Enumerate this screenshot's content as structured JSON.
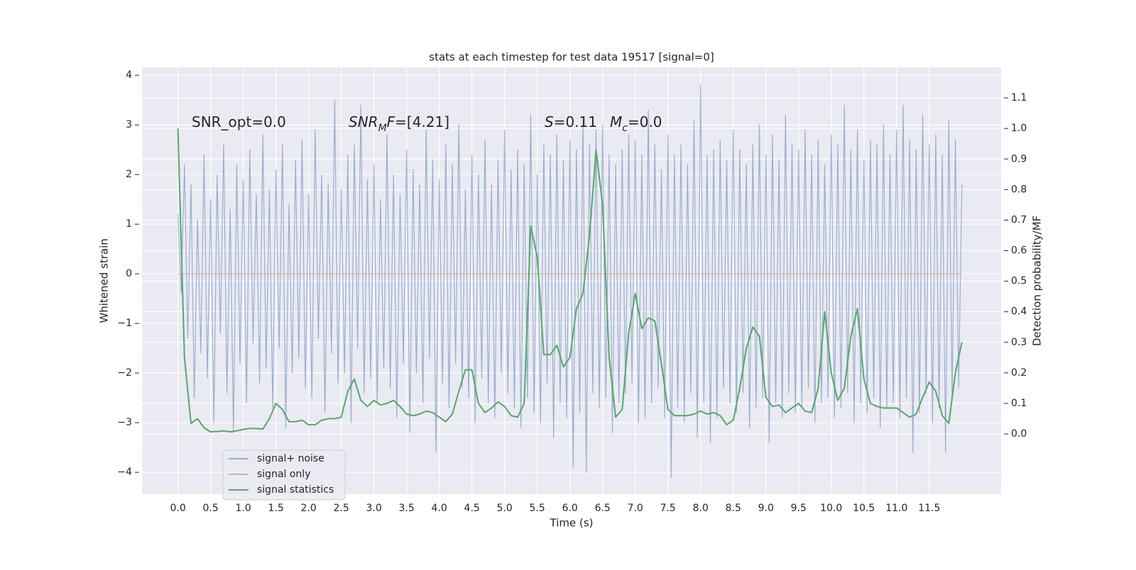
{
  "chart_data": {
    "type": "line",
    "title": "stats at each timestep for test data 19517 [signal=0]",
    "xlabel": "Time (s)",
    "ylabel": "Whitened strain",
    "y2label": "Detection probability/MF",
    "grid": true,
    "legend": "lower left",
    "background": "#eaeaf2",
    "xlim": [
      -0.55,
      12.6
    ],
    "ylim": [
      -4.44,
      4.16
    ],
    "y2lim": [
      -0.197,
      1.2
    ],
    "xticks": [
      {
        "value": 0,
        "label": "0.0"
      },
      0.5,
      {
        "value": 1,
        "label": "1.0"
      },
      1.5,
      {
        "value": 2,
        "label": "2.0"
      },
      2.5,
      {
        "value": 3,
        "label": "3.0"
      },
      3.5,
      {
        "value": 4,
        "label": "4.0"
      },
      4.5,
      {
        "value": 5,
        "label": "5.0"
      },
      5.5,
      {
        "value": 6,
        "label": "6.0"
      },
      6.5,
      {
        "value": 7,
        "label": "7.0"
      },
      7.5,
      {
        "value": 8,
        "label": "8.0"
      },
      8.5,
      {
        "value": 9,
        "label": "9.0"
      },
      9.5,
      {
        "value": 10,
        "label": "10.0"
      },
      10.5,
      {
        "value": 11,
        "label": "11.0"
      },
      11.5
    ],
    "yticks": [
      {
        "value": -4,
        "label": "−4"
      },
      {
        "value": -3,
        "label": "−3"
      },
      {
        "value": -2,
        "label": "−2"
      },
      {
        "value": -1,
        "label": "−1"
      },
      0,
      1,
      2,
      3,
      4
    ],
    "y2ticks": [
      {
        "value": 0,
        "label": "0.0"
      },
      0.1,
      0.2,
      0.3,
      0.4,
      0.5,
      0.6,
      0.7,
      0.8,
      0.9,
      {
        "value": 1,
        "label": "1.0"
      },
      1.1
    ],
    "annotations": [
      [
        {
          "text": "SNR_opt=0.0",
          "style": "normal"
        }
      ],
      [
        {
          "text": "SNR",
          "style": "italic"
        },
        {
          "text": "M",
          "style": "sub"
        },
        {
          "text": "F",
          "style": "italic"
        },
        {
          "text": "=[4.21]",
          "style": "normal"
        }
      ],
      [
        {
          "text": "S",
          "style": "italic"
        },
        {
          "text": "=0.11",
          "style": "normal"
        }
      ],
      [
        {
          "text": "M",
          "style": "italic"
        },
        {
          "text": "c",
          "style": "sub"
        },
        {
          "text": "=0.0",
          "style": "normal"
        }
      ]
    ],
    "series": [
      {
        "name": "signal+ noise",
        "color": "#4c72b0",
        "alpha": 0.5,
        "axis": "y",
        "x": [
          0,
          0.05,
          0.1,
          0.15,
          0.2,
          0.25,
          0.3,
          0.35,
          0.4,
          0.45,
          0.5,
          0.55,
          0.6,
          0.65,
          0.7,
          0.75,
          0.8,
          0.85,
          0.9,
          0.95,
          1,
          1.05,
          1.1,
          1.15,
          1.2,
          1.25,
          1.3,
          1.35,
          1.4,
          1.45,
          1.5,
          1.55,
          1.6,
          1.65,
          1.7,
          1.75,
          1.8,
          1.85,
          1.9,
          1.95,
          2,
          2.05,
          2.1,
          2.15,
          2.2,
          2.25,
          2.3,
          2.35,
          2.4,
          2.45,
          2.5,
          2.55,
          2.6,
          2.65,
          2.7,
          2.75,
          2.8,
          2.85,
          2.9,
          2.95,
          3,
          3.05,
          3.1,
          3.15,
          3.2,
          3.25,
          3.3,
          3.35,
          3.4,
          3.45,
          3.5,
          3.55,
          3.6,
          3.65,
          3.7,
          3.75,
          3.8,
          3.85,
          3.9,
          3.95,
          4,
          4.05,
          4.1,
          4.15,
          4.2,
          4.25,
          4.3,
          4.35,
          4.4,
          4.45,
          4.5,
          4.55,
          4.6,
          4.65,
          4.7,
          4.75,
          4.8,
          4.85,
          4.9,
          4.95,
          5,
          5.05,
          5.1,
          5.15,
          5.2,
          5.25,
          5.3,
          5.35,
          5.4,
          5.45,
          5.5,
          5.55,
          5.6,
          5.65,
          5.7,
          5.75,
          5.8,
          5.85,
          5.9,
          5.95,
          6,
          6.05,
          6.1,
          6.15,
          6.2,
          6.25,
          6.3,
          6.35,
          6.4,
          6.45,
          6.5,
          6.55,
          6.6,
          6.65,
          6.7,
          6.75,
          6.8,
          6.85,
          6.9,
          6.95,
          7,
          7.05,
          7.1,
          7.15,
          7.2,
          7.25,
          7.3,
          7.35,
          7.4,
          7.45,
          7.5,
          7.55,
          7.6,
          7.65,
          7.7,
          7.75,
          7.8,
          7.85,
          7.9,
          7.95,
          8,
          8.05,
          8.1,
          8.15,
          8.2,
          8.25,
          8.3,
          8.35,
          8.4,
          8.45,
          8.5,
          8.55,
          8.6,
          8.65,
          8.7,
          8.75,
          8.8,
          8.85,
          8.9,
          8.95,
          9,
          9.05,
          9.1,
          9.15,
          9.2,
          9.25,
          9.3,
          9.35,
          9.4,
          9.45,
          9.5,
          9.55,
          9.6,
          9.65,
          9.7,
          9.75,
          9.8,
          9.85,
          9.9,
          9.95,
          10,
          10.05,
          10.1,
          10.15,
          10.2,
          10.25,
          10.3,
          10.35,
          10.4,
          10.45,
          10.5,
          10.55,
          10.6,
          10.65,
          10.7,
          10.75,
          10.8,
          10.85,
          10.9,
          10.95,
          11,
          11.05,
          11.1,
          11.15,
          11.2,
          11.25,
          11.3,
          11.35,
          11.4,
          11.45,
          11.5,
          11.55,
          11.6,
          11.65,
          11.7,
          11.75,
          11.8,
          11.85,
          11.9,
          11.95,
          12
        ],
        "values": [
          1.2,
          -0.4,
          2.2,
          -1.3,
          1.8,
          -2.5,
          1.1,
          -1.6,
          2.4,
          -2.1,
          1.5,
          -3.0,
          2.0,
          -1.2,
          2.6,
          -2.4,
          1.3,
          -3.2,
          2.2,
          -1.8,
          1.9,
          -2.6,
          2.5,
          -1.4,
          1.6,
          -2.2,
          2.8,
          -1.9,
          1.7,
          -2.7,
          2.1,
          -1.5,
          2.6,
          -3.1,
          1.4,
          -2.0,
          2.3,
          -1.7,
          2.7,
          -2.3,
          1.6,
          -2.5,
          2.9,
          -1.3,
          2.0,
          -2.8,
          1.8,
          -1.6,
          3.5,
          -2.2,
          1.7,
          -2.0,
          2.4,
          -3.0,
          2.6,
          -1.5,
          3.4,
          -2.4,
          1.9,
          -2.1,
          2.2,
          -2.6,
          1.5,
          -1.9,
          2.8,
          -2.3,
          2.0,
          -2.9,
          1.6,
          -1.8,
          2.5,
          -3.2,
          2.1,
          -2.0,
          1.8,
          -2.6,
          2.9,
          -1.7,
          2.3,
          -3.6,
          1.9,
          -2.2,
          2.6,
          -2.7,
          2.2,
          -1.8,
          3.0,
          -2.3,
          1.7,
          -2.5,
          2.4,
          -3.0,
          2.0,
          -2.1,
          2.7,
          -2.6,
          1.8,
          -2.9,
          2.3,
          -2.0,
          2.9,
          -2.4,
          2.1,
          -2.7,
          2.5,
          -3.1,
          2.2,
          -2.5,
          3.2,
          -2.8,
          2.0,
          -3.0,
          2.6,
          -2.2,
          2.4,
          -3.3,
          2.8,
          -2.6,
          2.3,
          -2.9,
          2.7,
          -3.9,
          2.5,
          -2.8,
          3.1,
          -4.0,
          2.6,
          -2.4,
          2.9,
          -2.7,
          3.0,
          -2.5,
          2.4,
          -3.2,
          2.2,
          -2.6,
          2.5,
          -2.4,
          2.8,
          -2.2,
          2.7,
          -3.0,
          2.4,
          -2.9,
          3.3,
          -2.6,
          2.6,
          -2.3,
          2.1,
          -2.9,
          2.8,
          -4.1,
          2.4,
          -2.7,
          2.6,
          -3.0,
          2.2,
          -2.4,
          3.1,
          -3.3,
          3.8,
          -2.6,
          2.4,
          -3.4,
          2.5,
          -2.9,
          2.7,
          -2.3,
          2.3,
          -2.6,
          2.9,
          -2.8,
          2.5,
          -2.4,
          2.2,
          -3.1,
          2.6,
          -2.7,
          3.0,
          -2.5,
          2.4,
          -3.4,
          2.8,
          -2.6,
          2.3,
          -2.9,
          3.2,
          -2.4,
          2.6,
          -2.8,
          2.5,
          -2.7,
          2.9,
          -2.3,
          2.4,
          -3.0,
          2.7,
          -2.6,
          2.2,
          -2.5,
          2.8,
          -2.9,
          2.6,
          -2.7,
          3.4,
          -2.4,
          2.5,
          -3.0,
          2.9,
          -2.6,
          2.3,
          -2.8,
          2.7,
          -2.5,
          2.6,
          -3.1,
          3.0,
          -2.7,
          2.4,
          -2.6,
          2.9,
          -2.9,
          3.4,
          -2.5,
          2.7,
          -3.6,
          2.5,
          -2.8,
          3.2,
          -2.4,
          2.6,
          -3.0,
          2.8,
          -2.7,
          2.4,
          -3.6,
          3.1,
          -2.5,
          2.7,
          -2.3,
          1.8
        ]
      },
      {
        "name": "signal only",
        "color": "#dd8452",
        "alpha": 0.6,
        "axis": "y",
        "x": [
          0,
          12
        ],
        "values": [
          0,
          0
        ]
      },
      {
        "name": "signal statistics",
        "color": "#55a868",
        "alpha": 1,
        "axis": "y2",
        "x": [
          0,
          0.1,
          0.2,
          0.3,
          0.4,
          0.5,
          0.6,
          0.7,
          0.8,
          0.9,
          1,
          1.1,
          1.2,
          1.3,
          1.4,
          1.5,
          1.6,
          1.7,
          1.8,
          1.9,
          2,
          2.1,
          2.2,
          2.3,
          2.4,
          2.5,
          2.6,
          2.7,
          2.8,
          2.9,
          3,
          3.1,
          3.2,
          3.3,
          3.4,
          3.5,
          3.6,
          3.7,
          3.8,
          3.9,
          4,
          4.1,
          4.2,
          4.3,
          4.4,
          4.5,
          4.6,
          4.7,
          4.8,
          4.9,
          5,
          5.1,
          5.2,
          5.3,
          5.4,
          5.5,
          5.6,
          5.7,
          5.8,
          5.9,
          6,
          6.1,
          6.2,
          6.3,
          6.4,
          6.5,
          6.6,
          6.7,
          6.8,
          6.9,
          7,
          7.1,
          7.2,
          7.3,
          7.4,
          7.5,
          7.6,
          7.7,
          7.8,
          7.9,
          8,
          8.1,
          8.2,
          8.3,
          8.4,
          8.5,
          8.6,
          8.7,
          8.8,
          8.9,
          9,
          9.1,
          9.2,
          9.3,
          9.4,
          9.5,
          9.6,
          9.7,
          9.8,
          9.9,
          10,
          10.1,
          10.2,
          10.3,
          10.4,
          10.5,
          10.6,
          10.7,
          10.8,
          10.9,
          11,
          11.1,
          11.2,
          11.3,
          11.4,
          11.5,
          11.6,
          11.7,
          11.8,
          11.9,
          12
        ],
        "values": [
          1.0,
          0.25,
          0.035,
          0.05,
          0.02,
          0.007,
          0.008,
          0.01,
          0.007,
          0.01,
          0.015,
          0.018,
          0.018,
          0.016,
          0.05,
          0.1,
          0.08,
          0.04,
          0.04,
          0.045,
          0.03,
          0.03,
          0.045,
          0.05,
          0.05,
          0.055,
          0.14,
          0.18,
          0.11,
          0.09,
          0.11,
          0.095,
          0.1,
          0.11,
          0.09,
          0.065,
          0.06,
          0.065,
          0.075,
          0.07,
          0.055,
          0.04,
          0.065,
          0.14,
          0.21,
          0.21,
          0.1,
          0.07,
          0.085,
          0.105,
          0.09,
          0.06,
          0.055,
          0.1,
          0.68,
          0.58,
          0.26,
          0.26,
          0.29,
          0.22,
          0.25,
          0.41,
          0.46,
          0.65,
          0.93,
          0.75,
          0.25,
          0.055,
          0.08,
          0.33,
          0.46,
          0.345,
          0.38,
          0.37,
          0.23,
          0.08,
          0.06,
          0.06,
          0.06,
          0.065,
          0.075,
          0.065,
          0.07,
          0.06,
          0.03,
          0.045,
          0.15,
          0.28,
          0.35,
          0.32,
          0.12,
          0.09,
          0.095,
          0.07,
          0.085,
          0.1,
          0.075,
          0.07,
          0.15,
          0.4,
          0.2,
          0.11,
          0.15,
          0.32,
          0.41,
          0.18,
          0.1,
          0.09,
          0.085,
          0.085,
          0.085,
          0.07,
          0.055,
          0.065,
          0.12,
          0.17,
          0.14,
          0.06,
          0.035,
          0.2,
          0.3
        ]
      }
    ]
  }
}
